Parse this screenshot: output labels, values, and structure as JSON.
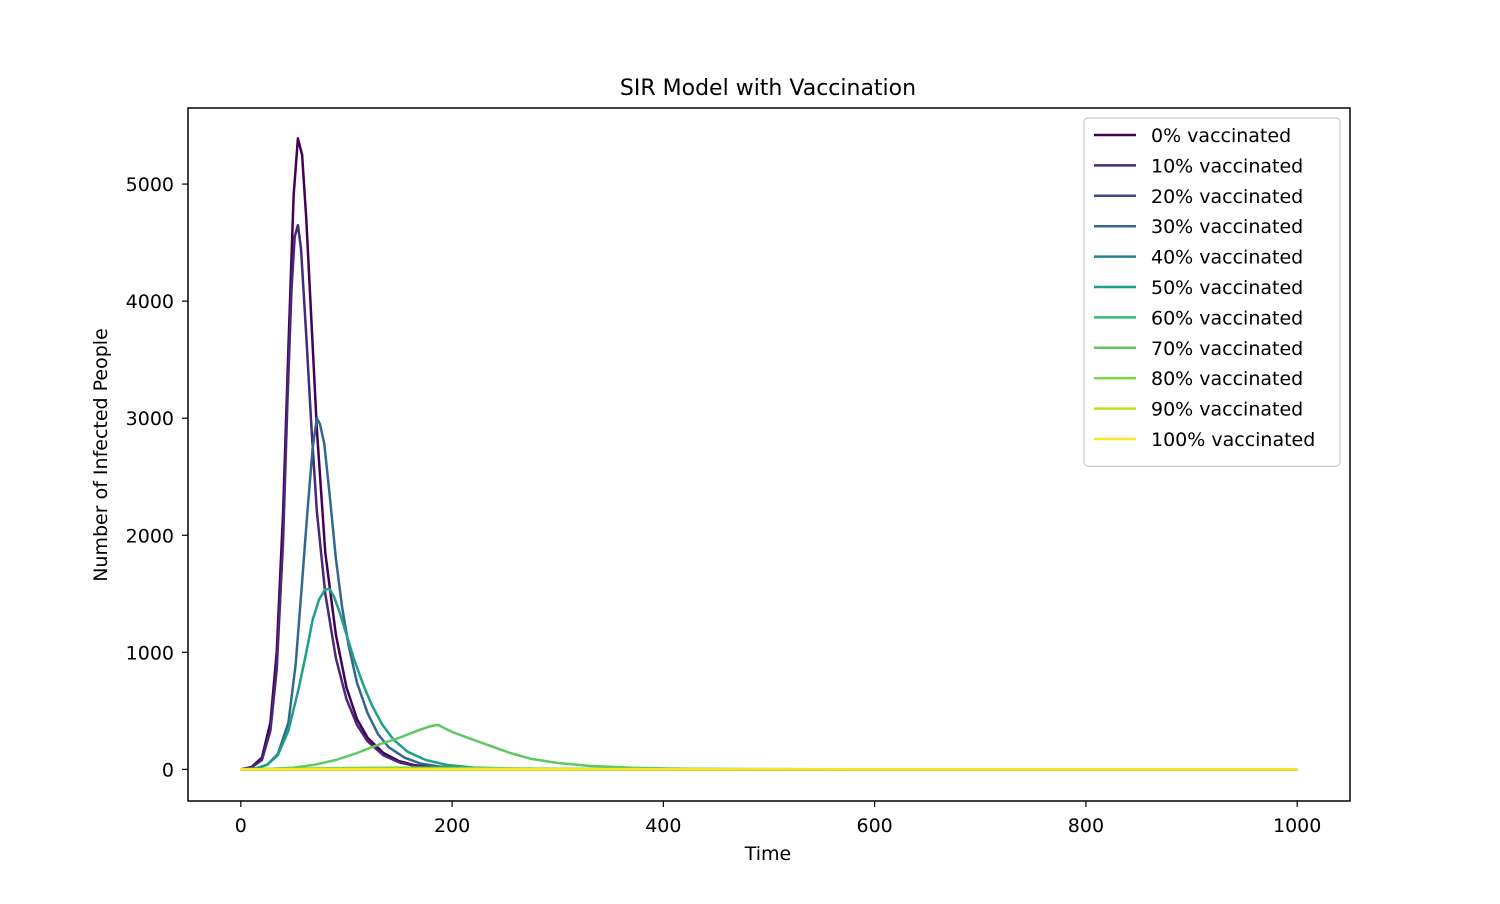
{
  "chart_data": {
    "type": "line",
    "title": "SIR Model with Vaccination",
    "xlabel": "Time",
    "ylabel": "Number of Infected People",
    "xlim": [
      -50,
      1050
    ],
    "ylim": [
      -270,
      5650
    ],
    "xticks": [
      0,
      200,
      400,
      600,
      800,
      1000
    ],
    "xtick_labels": [
      "0",
      "200",
      "400",
      "600",
      "800",
      "1000"
    ],
    "yticks": [
      0,
      1000,
      2000,
      3000,
      4000,
      5000
    ],
    "ytick_labels": [
      "0",
      "1000",
      "2000",
      "3000",
      "4000",
      "5000"
    ],
    "grid": false,
    "legend_position": "top-right",
    "series": [
      {
        "name": "0% vaccinated",
        "color": "#440154",
        "x": [
          0,
          10,
          20,
          28,
          34,
          40,
          45,
          50,
          54,
          58,
          62,
          67,
          72,
          80,
          90,
          100,
          110,
          120,
          135,
          150,
          165,
          180,
          200,
          250,
          300,
          400,
          600,
          800,
          1000
        ],
        "y": [
          0,
          20,
          100,
          400,
          1000,
          2200,
          3600,
          4900,
          5390,
          5250,
          4700,
          3800,
          2900,
          1850,
          1150,
          700,
          430,
          270,
          140,
          70,
          35,
          20,
          10,
          4,
          2,
          1,
          0,
          0,
          0
        ]
      },
      {
        "name": "10% vaccinated",
        "color": "#482878",
        "x": [
          0,
          10,
          20,
          28,
          34,
          40,
          44,
          48,
          51,
          54,
          57,
          62,
          67,
          72,
          80,
          90,
          100,
          110,
          120,
          135,
          150,
          165,
          180,
          200,
          250,
          300,
          400,
          600,
          800,
          1000
        ],
        "y": [
          0,
          15,
          80,
          330,
          850,
          1950,
          3100,
          4100,
          4550,
          4650,
          4450,
          3700,
          2900,
          2200,
          1500,
          950,
          600,
          380,
          240,
          120,
          60,
          30,
          15,
          8,
          3,
          1,
          0,
          0,
          0,
          0
        ]
      },
      {
        "name": "20% vaccinated",
        "color": "#3e4a89",
        "x": [
          0,
          1000
        ],
        "y": [
          0,
          0
        ]
      },
      {
        "name": "30% vaccinated",
        "color": "#31688e",
        "x": [
          0,
          15,
          25,
          35,
          45,
          52,
          58,
          63,
          68,
          72,
          75,
          79,
          84,
          90,
          96,
          102,
          110,
          120,
          130,
          140,
          155,
          170,
          190,
          220,
          260,
          320,
          400,
          600,
          800,
          1000
        ],
        "y": [
          0,
          10,
          40,
          130,
          400,
          900,
          1600,
          2200,
          2750,
          3000,
          2950,
          2780,
          2350,
          1800,
          1380,
          1060,
          740,
          480,
          300,
          190,
          100,
          50,
          22,
          9,
          4,
          2,
          1,
          0,
          0,
          0
        ]
      },
      {
        "name": "40% vaccinated",
        "color": "#26828e",
        "x": [
          0,
          1000
        ],
        "y": [
          0,
          0
        ]
      },
      {
        "name": "50% vaccinated",
        "color": "#1f9e89",
        "x": [
          0,
          15,
          25,
          35,
          45,
          55,
          62,
          68,
          74,
          80,
          84,
          88,
          94,
          100,
          108,
          116,
          124,
          134,
          145,
          158,
          175,
          195,
          220,
          260,
          320,
          400,
          600,
          800,
          1000
        ],
        "y": [
          0,
          10,
          40,
          120,
          330,
          700,
          1000,
          1280,
          1450,
          1540,
          1540,
          1480,
          1330,
          1150,
          920,
          720,
          550,
          380,
          250,
          150,
          80,
          38,
          15,
          6,
          3,
          1,
          0,
          0,
          0
        ]
      },
      {
        "name": "60% vaccinated",
        "color": "#35b779",
        "x": [
          0,
          1000
        ],
        "y": [
          0,
          0
        ]
      },
      {
        "name": "70% vaccinated",
        "color": "#5ec962",
        "x": [
          0,
          30,
          50,
          70,
          90,
          110,
          130,
          150,
          170,
          180,
          187,
          192,
          200,
          215,
          235,
          255,
          275,
          300,
          330,
          370,
          420,
          480,
          550,
          650,
          800,
          1000
        ],
        "y": [
          0,
          5,
          15,
          40,
          80,
          140,
          210,
          270,
          340,
          370,
          380,
          355,
          320,
          270,
          205,
          140,
          90,
          55,
          30,
          14,
          6,
          3,
          1,
          0,
          0,
          0
        ]
      },
      {
        "name": "80% vaccinated",
        "color": "#84d44b",
        "x": [
          0,
          50,
          100,
          150,
          200,
          300,
          400,
          600,
          800,
          1000
        ],
        "y": [
          0,
          5,
          12,
          15,
          12,
          6,
          2,
          0,
          0,
          0
        ]
      },
      {
        "name": "90% vaccinated",
        "color": "#c2df23",
        "x": [
          0,
          1000
        ],
        "y": [
          0,
          0
        ]
      },
      {
        "name": "100% vaccinated",
        "color": "#fde725",
        "x": [
          0,
          1000
        ],
        "y": [
          0,
          0
        ]
      }
    ]
  }
}
